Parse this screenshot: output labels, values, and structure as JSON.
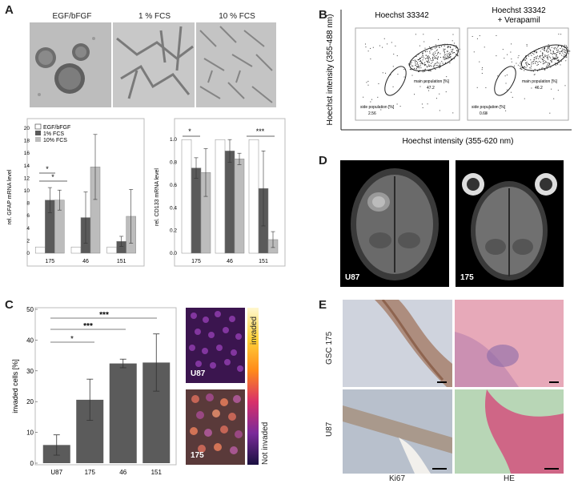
{
  "panels": {
    "A": {
      "letter": "A",
      "image_labels": [
        "EGF/bFGF",
        "1 % FCS",
        "10 % FCS"
      ],
      "gfap": {
        "ylabel": "rel. GFAP mRNA level",
        "yticks": [
          "0",
          "2",
          "4",
          "6",
          "8",
          "10",
          "12",
          "14",
          "16",
          "18",
          "20"
        ],
        "legend": [
          "EGF/bFGF",
          "1% FCS",
          "10% FCS"
        ],
        "sig": [
          "*",
          "*"
        ]
      },
      "cd133": {
        "ylabel": "rel. CD133 mRNA level",
        "yticks": [
          "0.0",
          "0.2",
          "0.4",
          "0.6",
          "0.8",
          "1.0"
        ],
        "sig": [
          "*",
          "***"
        ]
      }
    },
    "B": {
      "letter": "B",
      "plot1_title": "Hoechst 33342",
      "plot2_title_line1": "Hoechst 33342",
      "plot2_title_line2": "+ Verapamil",
      "y_axis": "Hoechst intensity (355-488 nm)",
      "x_axis": "Hoechst intensity (355-620 nm)",
      "p1_main_label": "main population [%]",
      "p1_main_value": "47.2",
      "p1_side_label": "side population [%]",
      "p1_side_value": "2.56",
      "p2_main_label": "main population [%]",
      "p2_main_value": "46.2",
      "p2_side_label": "side population [%]",
      "p2_side_value": "0.68"
    },
    "C": {
      "letter": "C",
      "ylabel": "invaded cells [%]",
      "yticks": [
        "0",
        "10",
        "20",
        "30",
        "40",
        "50"
      ],
      "sig": [
        "*",
        "***",
        "***"
      ],
      "img1_label": "U87",
      "img2_label": "175",
      "scale_top": "invaded",
      "scale_bottom": "Not invaded"
    },
    "D": {
      "letter": "D",
      "img1_label": "U87",
      "img2_label": "175"
    },
    "E": {
      "letter": "E",
      "row1": "GSC 175",
      "row2": "U87",
      "col1": "Ki67",
      "col2": "HE"
    }
  },
  "chart_data": [
    {
      "id": "gfap",
      "type": "bar",
      "ylabel": "rel. GFAP mRNA level",
      "ylim": [
        0,
        20
      ],
      "categories": [
        "175",
        "46",
        "151"
      ],
      "series": [
        {
          "name": "EGF/bFGF",
          "values": [
            1,
            1,
            1
          ],
          "err": [
            0,
            0,
            0
          ],
          "color": "#ffffff"
        },
        {
          "name": "1% FCS",
          "values": [
            8.5,
            5.7,
            1.9
          ],
          "err": [
            2.0,
            4.1,
            0.8
          ],
          "color": "#5a5a5a"
        },
        {
          "name": "10% FCS",
          "values": [
            8.5,
            13.8,
            5.9
          ],
          "err": [
            1.6,
            5.2,
            4.3
          ],
          "color": "#bcbcbc"
        }
      ]
    },
    {
      "id": "cd133",
      "type": "bar",
      "ylabel": "rel. CD133 mRNA level",
      "ylim": [
        0,
        1.1
      ],
      "categories": [
        "175",
        "46",
        "151"
      ],
      "series": [
        {
          "name": "EGF/bFGF",
          "values": [
            1,
            1,
            1
          ],
          "err": [
            0,
            0,
            0
          ],
          "color": "#ffffff"
        },
        {
          "name": "1% FCS",
          "values": [
            0.75,
            0.9,
            0.57
          ],
          "err": [
            0.09,
            0.1,
            0.33
          ],
          "color": "#5a5a5a"
        },
        {
          "name": "10% FCS",
          "values": [
            0.71,
            0.83,
            0.12
          ],
          "err": [
            0.21,
            0.05,
            0.07
          ],
          "color": "#bcbcbc"
        }
      ]
    },
    {
      "id": "invasion",
      "type": "bar",
      "ylabel": "invaded cells [%]",
      "ylim": [
        0,
        50
      ],
      "categories": [
        "U87",
        "175",
        "46",
        "151"
      ],
      "values": [
        5.9,
        20.6,
        32.4,
        32.7
      ],
      "err": [
        3.3,
        6.7,
        1.4,
        9.3
      ],
      "color": "#5b5b5b"
    }
  ]
}
